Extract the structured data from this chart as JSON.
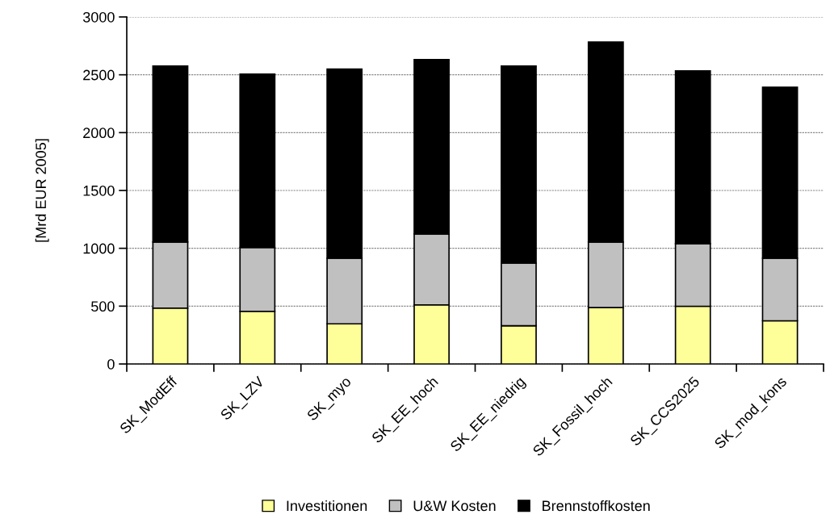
{
  "chart_data": {
    "type": "bar",
    "stacked": true,
    "ylabel": "[Mrd EUR 2005]",
    "categories": [
      "SK_ModEff",
      "SK_LZV",
      "SK_myo",
      "SK_EE_hoch",
      "SK_EE_niedrig",
      "SK_Fossil_hoch",
      "SK_CCS2025",
      "SK_mod_kons"
    ],
    "series": [
      {
        "name": "Investitionen",
        "color": "#ffff99",
        "values": [
          483,
          455,
          347,
          511,
          331,
          487,
          499,
          373
        ]
      },
      {
        "name": "U&W Kosten",
        "color": "#c0c0c0",
        "values": [
          571,
          552,
          567,
          613,
          541,
          567,
          541,
          541
        ]
      },
      {
        "name": "Brennstoffkosten",
        "color": "#000000",
        "values": [
          1521,
          1498,
          1635,
          1507,
          1703,
          1730,
          1493,
          1479
        ]
      }
    ],
    "ylim": [
      0,
      3000
    ],
    "yticks": [
      0,
      500,
      1000,
      1500,
      2000,
      2500,
      3000
    ],
    "grid": "y",
    "legend": "bottom"
  }
}
